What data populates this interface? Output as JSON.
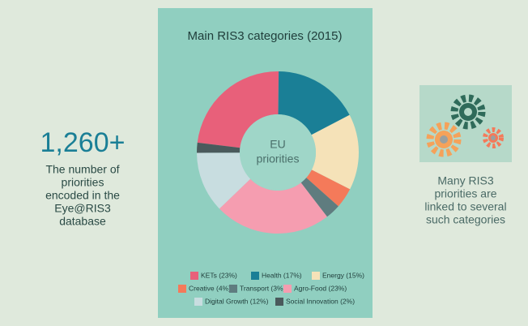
{
  "chart_data": {
    "type": "donut",
    "title": "Main RIS3 categories (2015)",
    "center_label": [
      "EU",
      "priorities"
    ],
    "categories": [
      "KETs (23%)",
      "Health (17%)",
      "Energy (15%)",
      "Creative (4%)",
      "Transport (3%)",
      "Agro-Food (23%)",
      "Digital Growth (12%)",
      "Social Innovation (2%)"
    ],
    "values": [
      23,
      17,
      15,
      4,
      3,
      23,
      12,
      2
    ],
    "colors": [
      "#e8607a",
      "#1a7f96",
      "#f5e2b8",
      "#f47a5a",
      "#5f7c7f",
      "#f59db0",
      "#c8dde0",
      "#4a5a5c"
    ]
  },
  "left_panel": {
    "stat": "1,260+",
    "lines": [
      "The number of",
      "priorities",
      "encoded in the",
      "Eye@RIS3",
      "database"
    ]
  },
  "right_panel": {
    "lines": [
      "Many RIS3",
      "priorities are",
      "linked to several",
      "such categories"
    ]
  }
}
